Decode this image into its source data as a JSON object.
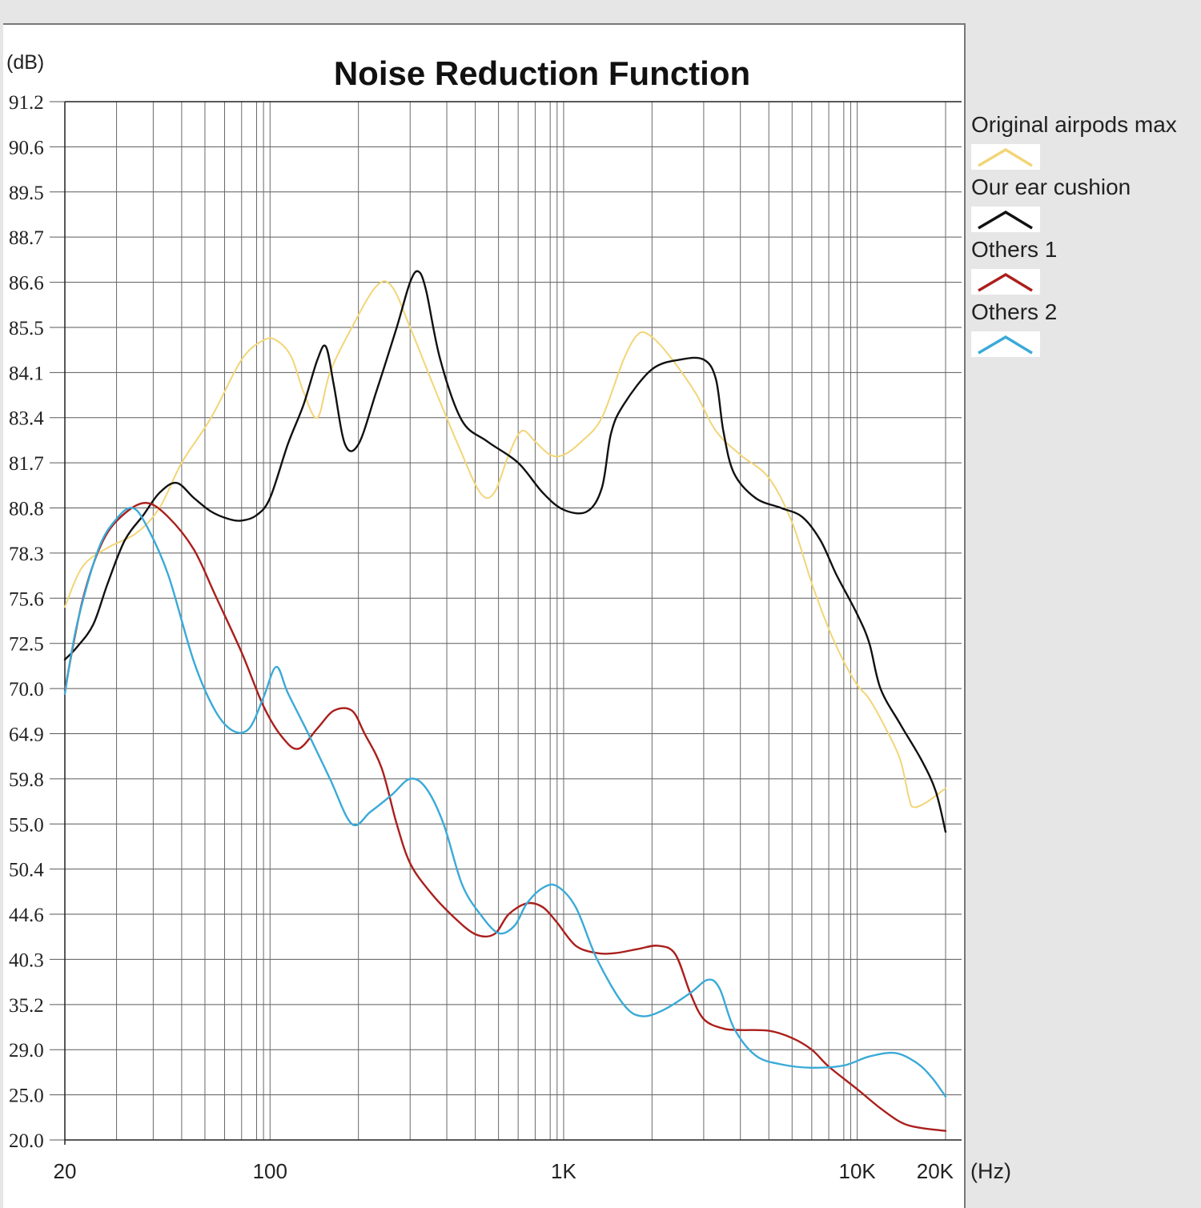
{
  "chart_data": {
    "type": "line",
    "title": "Noise Reduction Function",
    "ylabel": "(dB)",
    "xlabel": "(Hz)",
    "x_scale": "log",
    "xlim": [
      20,
      20000
    ],
    "y_ticks": [
      "91.2",
      "90.6",
      "89.5",
      "88.7",
      "86.6",
      "85.5",
      "84.1",
      "83.4",
      "81.7",
      "80.8",
      "78.3",
      "75.6",
      "72.5",
      "70.0",
      "64.9",
      "59.8",
      "55.0",
      "50.4",
      "44.6",
      "40.3",
      "35.2",
      "29.0",
      "25.0",
      "20.0"
    ],
    "x_ticks": [
      {
        "value": 20,
        "label": "20"
      },
      {
        "value": 100,
        "label": "100"
      },
      {
        "value": 1000,
        "label": "1K"
      },
      {
        "value": 10000,
        "label": "10K"
      },
      {
        "value": 20000,
        "label": "20K"
      }
    ],
    "grid": true,
    "legend_position": "right",
    "series": [
      {
        "name": "Original airpods max",
        "color": "#f2d577",
        "points": [
          [
            20,
            75.0
          ],
          [
            23,
            77.5
          ],
          [
            28,
            78.6
          ],
          [
            35,
            79.4
          ],
          [
            42,
            80.8
          ],
          [
            50,
            81.7
          ],
          [
            63,
            83.4
          ],
          [
            80,
            84.5
          ],
          [
            95,
            85.1
          ],
          [
            105,
            85.1
          ],
          [
            118,
            84.6
          ],
          [
            130,
            83.8
          ],
          [
            145,
            83.4
          ],
          [
            160,
            84.1
          ],
          [
            190,
            85.5
          ],
          [
            230,
            86.5
          ],
          [
            260,
            86.5
          ],
          [
            300,
            85.5
          ],
          [
            360,
            83.9
          ],
          [
            440,
            82.3
          ],
          [
            520,
            81.1
          ],
          [
            580,
            81.1
          ],
          [
            650,
            82.0
          ],
          [
            720,
            82.9
          ],
          [
            800,
            82.5
          ],
          [
            900,
            82.0
          ],
          [
            1000,
            82.0
          ],
          [
            1150,
            82.5
          ],
          [
            1350,
            83.4
          ],
          [
            1600,
            84.5
          ],
          [
            1800,
            85.3
          ],
          [
            2000,
            85.2
          ],
          [
            2300,
            84.6
          ],
          [
            2800,
            83.8
          ],
          [
            3300,
            82.9
          ],
          [
            4000,
            82.0
          ],
          [
            5000,
            81.4
          ],
          [
            6000,
            80.0
          ],
          [
            7000,
            76.5
          ],
          [
            8000,
            73.5
          ],
          [
            9000,
            71.5
          ],
          [
            10000,
            70.2
          ],
          [
            11000,
            68.8
          ],
          [
            12500,
            65.5
          ],
          [
            14000,
            62.0
          ],
          [
            15000,
            57.8
          ],
          [
            15500,
            56.8
          ],
          [
            17000,
            57.2
          ],
          [
            20000,
            58.8
          ]
        ]
      },
      {
        "name": "Our ear cushion",
        "color": "#111111",
        "points": [
          [
            20,
            71.6
          ],
          [
            22,
            72.3
          ],
          [
            25,
            73.8
          ],
          [
            28,
            76.5
          ],
          [
            32,
            79.0
          ],
          [
            37,
            80.4
          ],
          [
            42,
            81.1
          ],
          [
            48,
            81.3
          ],
          [
            55,
            81.0
          ],
          [
            63,
            80.6
          ],
          [
            72,
            80.2
          ],
          [
            80,
            80.1
          ],
          [
            90,
            80.4
          ],
          [
            100,
            81.0
          ],
          [
            115,
            82.4
          ],
          [
            130,
            83.6
          ],
          [
            145,
            84.5
          ],
          [
            155,
            84.9
          ],
          [
            165,
            83.9
          ],
          [
            180,
            82.4
          ],
          [
            200,
            82.4
          ],
          [
            230,
            83.8
          ],
          [
            270,
            85.5
          ],
          [
            300,
            86.6
          ],
          [
            320,
            87.1
          ],
          [
            340,
            86.4
          ],
          [
            380,
            84.5
          ],
          [
            450,
            83.3
          ],
          [
            550,
            82.5
          ],
          [
            700,
            81.7
          ],
          [
            850,
            81.1
          ],
          [
            1000,
            80.7
          ],
          [
            1200,
            80.6
          ],
          [
            1350,
            81.2
          ],
          [
            1450,
            82.8
          ],
          [
            1600,
            83.6
          ],
          [
            2000,
            84.2
          ],
          [
            2500,
            84.5
          ],
          [
            3000,
            84.5
          ],
          [
            3300,
            84.0
          ],
          [
            3500,
            82.9
          ],
          [
            3800,
            81.5
          ],
          [
            4500,
            81.0
          ],
          [
            5500,
            80.8
          ],
          [
            6500,
            80.3
          ],
          [
            7500,
            79.0
          ],
          [
            8500,
            77.0
          ],
          [
            10000,
            74.5
          ],
          [
            11000,
            72.5
          ],
          [
            12000,
            70.0
          ],
          [
            14000,
            66.0
          ],
          [
            16500,
            62.0
          ],
          [
            18500,
            58.5
          ],
          [
            20000,
            54.2
          ]
        ]
      },
      {
        "name": "Others 1",
        "color": "#aa1f1c",
        "points": [
          [
            20,
            69.8
          ],
          [
            23,
            75.5
          ],
          [
            27,
            79.0
          ],
          [
            32,
            80.5
          ],
          [
            38,
            80.9
          ],
          [
            45,
            80.3
          ],
          [
            55,
            78.5
          ],
          [
            65,
            75.8
          ],
          [
            80,
            72.0
          ],
          [
            95,
            68.0
          ],
          [
            110,
            64.5
          ],
          [
            125,
            63.2
          ],
          [
            145,
            65.5
          ],
          [
            165,
            67.5
          ],
          [
            190,
            67.5
          ],
          [
            210,
            64.9
          ],
          [
            240,
            61.0
          ],
          [
            270,
            55.0
          ],
          [
            300,
            51.0
          ],
          [
            350,
            47.5
          ],
          [
            420,
            44.4
          ],
          [
            500,
            42.7
          ],
          [
            580,
            42.7
          ],
          [
            650,
            44.6
          ],
          [
            750,
            46.0
          ],
          [
            850,
            45.5
          ],
          [
            950,
            43.8
          ],
          [
            1100,
            41.6
          ],
          [
            1300,
            40.9
          ],
          [
            1500,
            40.9
          ],
          [
            1800,
            41.3
          ],
          [
            2100,
            41.6
          ],
          [
            2400,
            40.8
          ],
          [
            2700,
            36.5
          ],
          [
            3000,
            33.2
          ],
          [
            3500,
            31.9
          ],
          [
            4000,
            31.7
          ],
          [
            5000,
            31.6
          ],
          [
            6000,
            30.6
          ],
          [
            7000,
            29.0
          ],
          [
            8000,
            27.5
          ],
          [
            10000,
            25.5
          ],
          [
            12000,
            23.5
          ],
          [
            14000,
            22.0
          ],
          [
            16000,
            21.4
          ],
          [
            20000,
            21.0
          ]
        ]
      },
      {
        "name": "Others 2",
        "color": "#3aaad8",
        "points": [
          [
            20,
            69.4
          ],
          [
            22,
            73.8
          ],
          [
            26,
            78.5
          ],
          [
            30,
            80.2
          ],
          [
            34,
            80.8
          ],
          [
            38,
            79.8
          ],
          [
            45,
            77.0
          ],
          [
            55,
            71.5
          ],
          [
            65,
            67.5
          ],
          [
            75,
            65.2
          ],
          [
            85,
            65.5
          ],
          [
            95,
            69.0
          ],
          [
            105,
            71.2
          ],
          [
            115,
            69.5
          ],
          [
            135,
            64.9
          ],
          [
            160,
            59.8
          ],
          [
            190,
            55.0
          ],
          [
            220,
            56.3
          ],
          [
            260,
            58.1
          ],
          [
            300,
            59.8
          ],
          [
            340,
            58.8
          ],
          [
            390,
            55.0
          ],
          [
            450,
            48.5
          ],
          [
            520,
            44.6
          ],
          [
            600,
            42.8
          ],
          [
            680,
            43.5
          ],
          [
            750,
            46.0
          ],
          [
            850,
            48.0
          ],
          [
            950,
            48.2
          ],
          [
            1100,
            45.5
          ],
          [
            1300,
            40.3
          ],
          [
            1600,
            35.2
          ],
          [
            1850,
            33.6
          ],
          [
            2200,
            34.5
          ],
          [
            2700,
            36.5
          ],
          [
            3100,
            38.0
          ],
          [
            3400,
            37.0
          ],
          [
            3800,
            32.0
          ],
          [
            4500,
            28.5
          ],
          [
            5500,
            27.7
          ],
          [
            7000,
            27.4
          ],
          [
            9000,
            27.6
          ],
          [
            11000,
            28.4
          ],
          [
            13500,
            28.7
          ],
          [
            16000,
            27.8
          ],
          [
            18000,
            26.5
          ],
          [
            20000,
            24.8
          ]
        ]
      }
    ]
  }
}
